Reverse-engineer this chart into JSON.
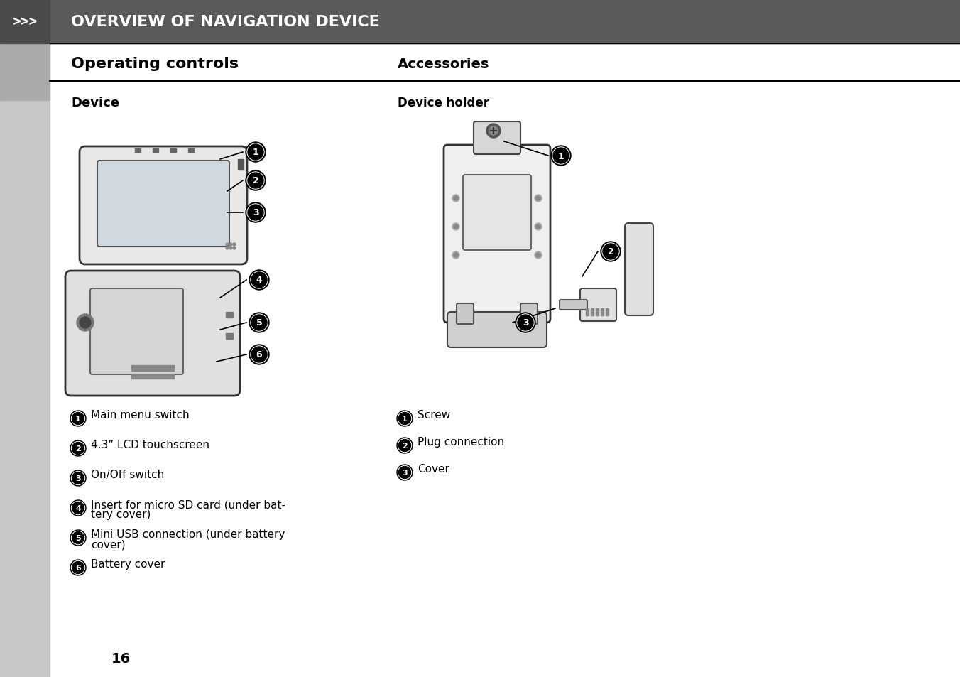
{
  "bg_color": "#ffffff",
  "header_bg": "#5a5a5a",
  "header_text": "OVERVIEW OF NAVIGATION DEVICE",
  "header_arrows": ">>>",
  "sidebar_color": "#c8c8c8",
  "line_color": "#888888",
  "title_left": "Operating controls",
  "title_right": "Accessories",
  "subtitle_left": "Device",
  "subtitle_right": "Device holder",
  "left_items": [
    [
      "1",
      "Main menu switch"
    ],
    [
      "2",
      "4.3” LCD touchscreen"
    ],
    [
      "3",
      "On/Off switch"
    ],
    [
      "4",
      "Insert for micro SD card (under bat-\n       tery cover)"
    ],
    [
      "5",
      "Mini USB connection (under battery\n       cover)"
    ],
    [
      "6",
      "Battery cover"
    ]
  ],
  "right_items": [
    [
      "1",
      "Screw"
    ],
    [
      "2",
      "Plug connection"
    ],
    [
      "3",
      "Cover"
    ]
  ],
  "page_number": "16"
}
